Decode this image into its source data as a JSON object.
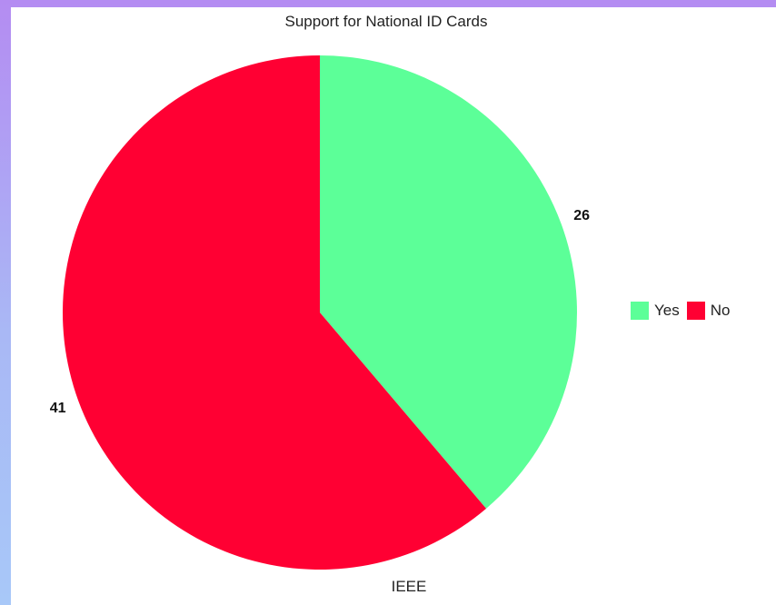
{
  "chart_data": {
    "type": "pie",
    "title": "Support for National ID Cards",
    "xlabel": "IEEE",
    "categories": [
      "Yes",
      "No"
    ],
    "values": [
      26,
      41
    ],
    "colors": [
      "#5cff98",
      "#ff0033"
    ],
    "start_angle": "12 o'clock",
    "direction": "clockwise",
    "legend_position": "right",
    "data_labels": [
      "26",
      "41"
    ]
  }
}
